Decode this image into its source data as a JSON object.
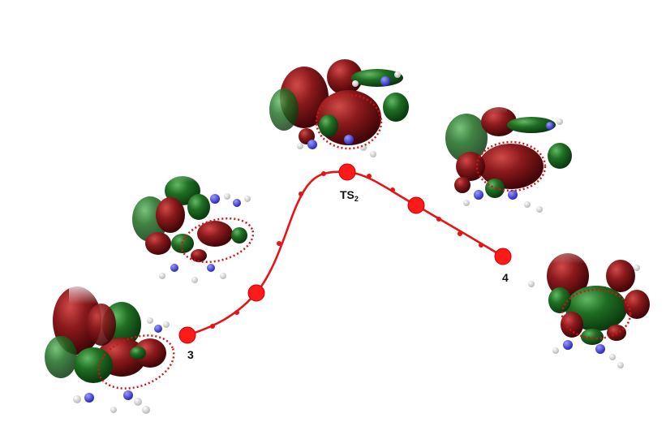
{
  "labels": {
    "start": "3",
    "ts_main": "TS",
    "ts_sub": "2",
    "end": "4"
  },
  "colors": {
    "path": "#e81414",
    "orbital_dark_red": "#6a0c10",
    "orbital_red": "#8b1a1c",
    "orbital_green": "#1f6e23",
    "orbital_dark_green": "#114d16",
    "nitrogen": "#3a3ad8",
    "hydrogen": "#e8e8e8",
    "carbon": "#8a8a8a",
    "highlight": "#d41414"
  },
  "icons": {
    "molecule": "molecular-orbital-isosurface",
    "highlight": "dotted-ellipse"
  }
}
